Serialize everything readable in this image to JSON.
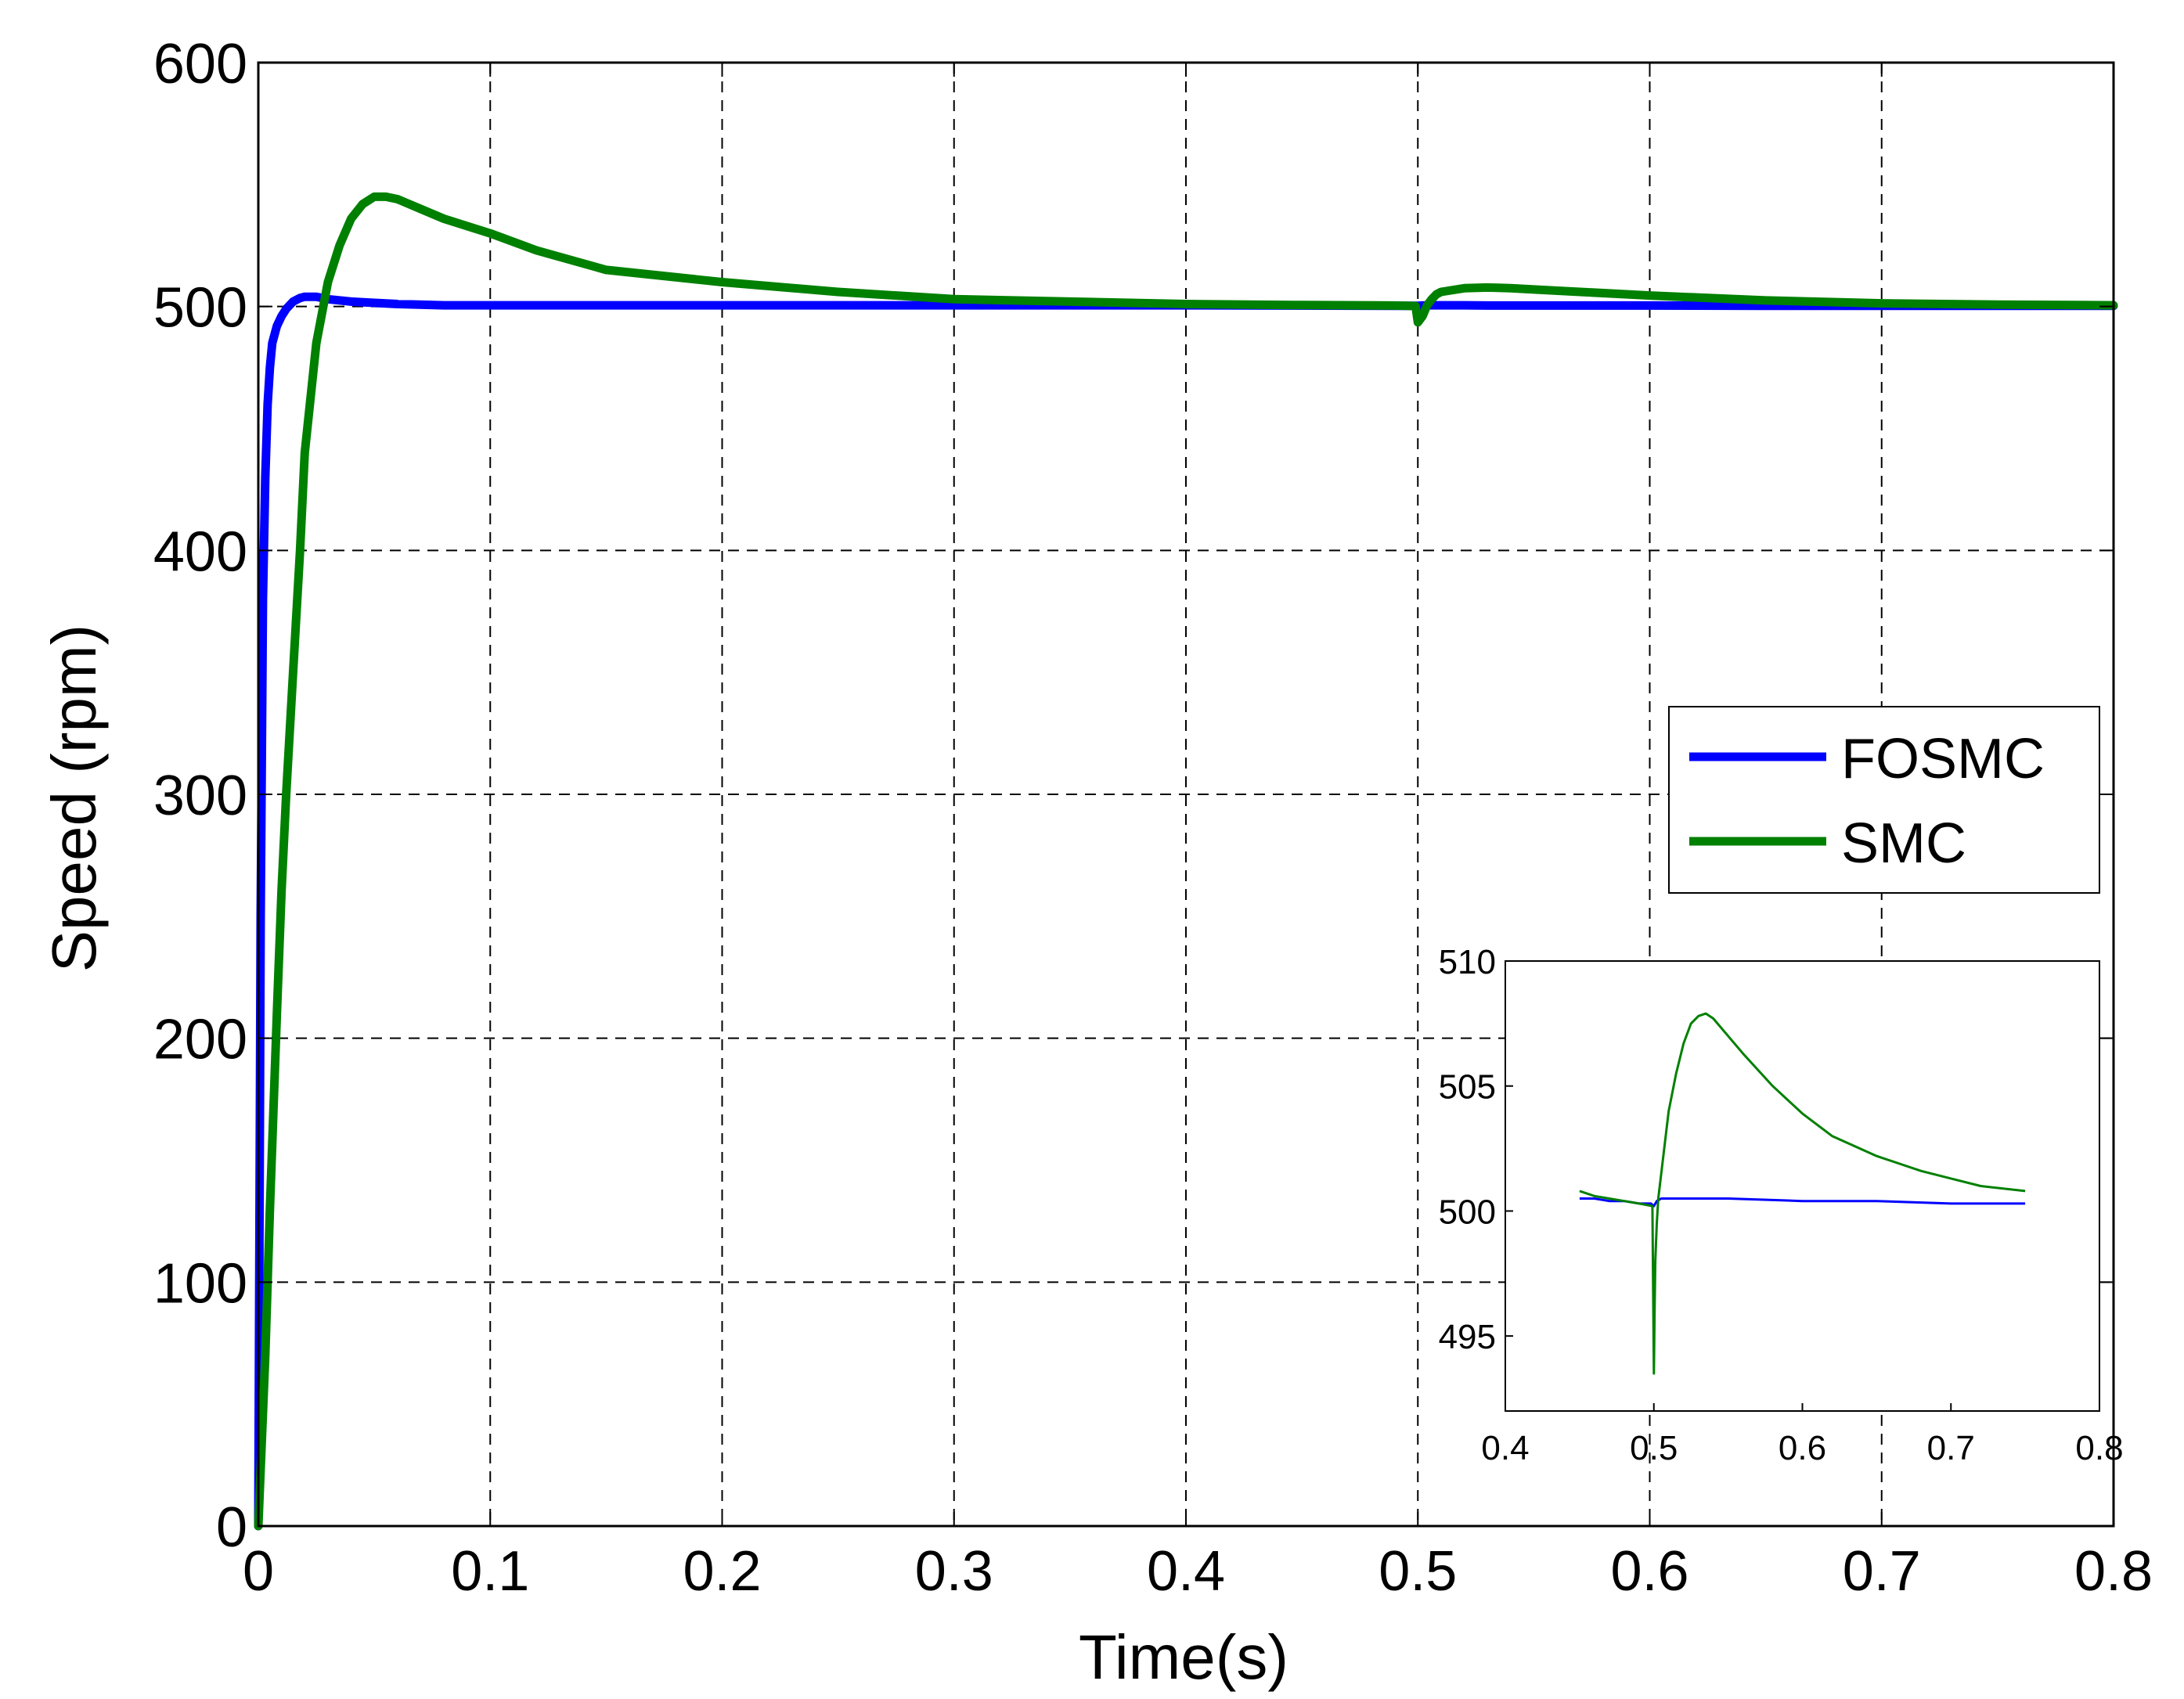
{
  "colors": {
    "fosmc": "#0000ff",
    "smc": "#008000",
    "grid": "#000000",
    "axis": "#000000",
    "background": "#ffffff"
  },
  "chart_data": [
    {
      "type": "line",
      "role": "main",
      "xlabel": "Time(s)",
      "ylabel": "Speed (rpm)",
      "xlim": [
        0,
        0.8
      ],
      "ylim": [
        0,
        600
      ],
      "xticks": [
        0,
        0.1,
        0.2,
        0.3,
        0.4,
        0.5,
        0.6,
        0.7,
        0.8
      ],
      "xtick_labels": [
        "0",
        "0.1",
        "0.2",
        "0.3",
        "0.4",
        "0.5",
        "0.6",
        "0.7",
        "0.8"
      ],
      "yticks": [
        0,
        100,
        200,
        300,
        400,
        500,
        600
      ],
      "ytick_labels": [
        "0",
        "100",
        "200",
        "300",
        "400",
        "500",
        "600"
      ],
      "grid": true,
      "legend_position": "right",
      "series": [
        {
          "name": "FOSMC",
          "color": "#0000ff",
          "x": [
            0,
            0.0004,
            0.001,
            0.002,
            0.003,
            0.004,
            0.005,
            0.006,
            0.008,
            0.01,
            0.012,
            0.015,
            0.018,
            0.02,
            0.025,
            0.03,
            0.04,
            0.05,
            0.06,
            0.08,
            0.1,
            0.2,
            0.3,
            0.4,
            0.49,
            0.5,
            0.502,
            0.505,
            0.51,
            0.52,
            0.53,
            0.55,
            0.6,
            0.65,
            0.7,
            0.75,
            0.8
          ],
          "y": [
            0,
            100,
            250,
            380,
            430,
            460,
            475,
            485,
            492,
            496,
            499,
            502,
            503.5,
            504,
            504,
            503,
            502,
            501.5,
            501,
            500.5,
            500.5,
            500.5,
            500.5,
            500.5,
            500.3,
            500.3,
            500.4,
            500.5,
            500.5,
            500.5,
            500.4,
            500.4,
            500.4,
            500.3,
            500.3,
            500.3,
            500.3
          ]
        },
        {
          "name": "SMC",
          "color": "#008000",
          "x": [
            0,
            0.003,
            0.005,
            0.008,
            0.01,
            0.012,
            0.015,
            0.018,
            0.02,
            0.025,
            0.03,
            0.035,
            0.04,
            0.045,
            0.05,
            0.055,
            0.06,
            0.07,
            0.08,
            0.1,
            0.12,
            0.15,
            0.2,
            0.25,
            0.3,
            0.35,
            0.4,
            0.45,
            0.49,
            0.499,
            0.5,
            0.502,
            0.504,
            0.506,
            0.508,
            0.51,
            0.52,
            0.53,
            0.54,
            0.55,
            0.57,
            0.6,
            0.65,
            0.7,
            0.75,
            0.8
          ],
          "y": [
            0,
            70,
            130,
            210,
            260,
            300,
            350,
            400,
            440,
            485,
            510,
            525,
            536,
            542,
            545,
            545,
            544,
            540,
            536,
            530,
            523,
            515,
            510,
            506,
            503,
            502,
            501,
            500.6,
            500.4,
            500.2,
            493.5,
            496,
            500.5,
            503,
            505,
            506,
            507.5,
            507.8,
            507.5,
            507,
            506,
            504.5,
            502.5,
            501.3,
            500.8,
            500.5
          ]
        }
      ]
    },
    {
      "type": "line",
      "role": "inset",
      "xlim": [
        0.4,
        0.8
      ],
      "ylim": [
        492,
        510
      ],
      "xticks": [
        0.4,
        0.5,
        0.6,
        0.7,
        0.8
      ],
      "xtick_labels": [
        "0.4",
        "0.5",
        "0.6",
        "0.7",
        "0.8"
      ],
      "yticks": [
        495,
        500,
        505,
        510
      ],
      "ytick_labels": [
        "495",
        "500",
        "505",
        "510"
      ],
      "grid": false,
      "series": [
        {
          "color": "#0000ff",
          "x": [
            0.45,
            0.46,
            0.47,
            0.48,
            0.49,
            0.498,
            0.5,
            0.502,
            0.505,
            0.51,
            0.52,
            0.55,
            0.6,
            0.65,
            0.7,
            0.75
          ],
          "y": [
            500.5,
            500.5,
            500.4,
            500.4,
            500.3,
            500.3,
            500.2,
            500.4,
            500.5,
            500.5,
            500.5,
            500.5,
            500.4,
            500.4,
            500.3,
            500.3
          ]
        },
        {
          "color": "#008000",
          "x": [
            0.45,
            0.46,
            0.47,
            0.48,
            0.49,
            0.499,
            0.5,
            0.5005,
            0.501,
            0.502,
            0.503,
            0.505,
            0.508,
            0.51,
            0.515,
            0.52,
            0.525,
            0.53,
            0.535,
            0.54,
            0.55,
            0.56,
            0.58,
            0.6,
            0.62,
            0.65,
            0.68,
            0.7,
            0.72,
            0.75
          ],
          "y": [
            500.8,
            500.6,
            500.5,
            500.4,
            500.3,
            500.2,
            493.5,
            496,
            498,
            499.5,
            500.5,
            501.5,
            503,
            504,
            505.5,
            506.7,
            507.5,
            507.8,
            507.9,
            507.7,
            507,
            506.3,
            505,
            503.9,
            503,
            502.2,
            501.6,
            501.3,
            501.0,
            500.8
          ]
        }
      ]
    }
  ]
}
